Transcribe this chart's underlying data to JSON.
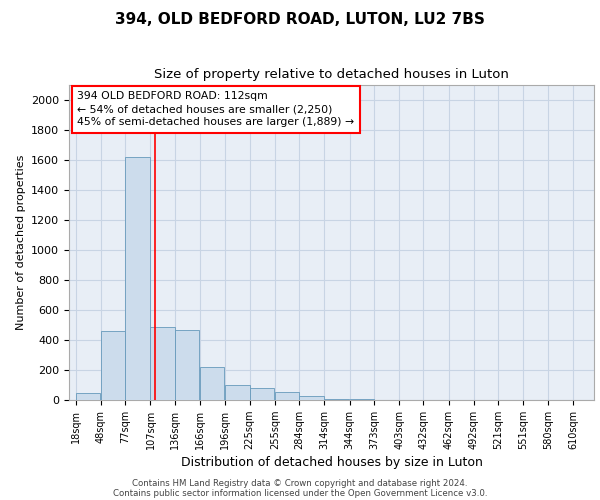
{
  "title1": "394, OLD BEDFORD ROAD, LUTON, LU2 7BS",
  "title2": "Size of property relative to detached houses in Luton",
  "xlabel": "Distribution of detached houses by size in Luton",
  "ylabel": "Number of detached properties",
  "footer1": "Contains HM Land Registry data © Crown copyright and database right 2024.",
  "footer2": "Contains public sector information licensed under the Open Government Licence v3.0.",
  "annotation_line1": "394 OLD BEDFORD ROAD: 112sqm",
  "annotation_line2": "← 54% of detached houses are smaller (2,250)",
  "annotation_line3": "45% of semi-detached houses are larger (1,889) →",
  "bar_left_edges": [
    18,
    48,
    77,
    107,
    136,
    166,
    196,
    225,
    255,
    284,
    314,
    344,
    373,
    403,
    432,
    462,
    492,
    521,
    551,
    580
  ],
  "bar_widths": [
    29,
    29,
    29,
    29,
    29,
    29,
    29,
    29,
    29,
    29,
    29,
    29,
    29,
    29,
    29,
    29,
    29,
    29,
    29,
    29
  ],
  "bar_heights": [
    50,
    460,
    1620,
    490,
    470,
    220,
    100,
    80,
    55,
    30,
    10,
    4,
    3,
    1,
    1,
    0,
    0,
    0,
    0,
    0
  ],
  "bar_color": "#ccdcec",
  "bar_edge_color": "#6699bb",
  "grid_color": "#c8d4e4",
  "bg_color": "#e8eef6",
  "red_line_x": 112,
  "ylim": [
    0,
    2100
  ],
  "xlim": [
    10,
    635
  ],
  "yticks": [
    0,
    200,
    400,
    600,
    800,
    1000,
    1200,
    1400,
    1600,
    1800,
    2000
  ],
  "tick_labels": [
    "18sqm",
    "48sqm",
    "77sqm",
    "107sqm",
    "136sqm",
    "166sqm",
    "196sqm",
    "225sqm",
    "255sqm",
    "284sqm",
    "314sqm",
    "344sqm",
    "373sqm",
    "403sqm",
    "432sqm",
    "462sqm",
    "492sqm",
    "521sqm",
    "551sqm",
    "580sqm",
    "610sqm"
  ],
  "tick_positions": [
    18,
    48,
    77,
    107,
    136,
    166,
    196,
    225,
    255,
    284,
    314,
    344,
    373,
    403,
    432,
    462,
    492,
    521,
    551,
    580,
    610
  ],
  "title1_fontsize": 11,
  "title2_fontsize": 9.5,
  "xlabel_fontsize": 9,
  "ylabel_fontsize": 8,
  "tick_fontsize": 7,
  "ytick_fontsize": 8,
  "footer_fontsize": 6.2,
  "annotation_fontsize": 7.8
}
